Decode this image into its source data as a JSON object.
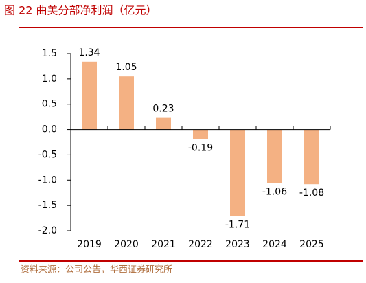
{
  "chart_data": {
    "type": "bar",
    "title": "图 22   曲美分部净利润（亿元）",
    "source": "资料来源：公司公告，华西证券研究所",
    "categories": [
      "2019",
      "2020",
      "2021",
      "2022",
      "2023",
      "2024",
      "2025"
    ],
    "values": [
      1.34,
      1.05,
      0.23,
      -0.19,
      -1.71,
      -1.06,
      -1.08
    ],
    "color": "#f4b183",
    "ylim": [
      -2,
      1.5
    ],
    "yticks": [
      1.5,
      {
        "value": 1,
        "label": "1.0"
      },
      0.5,
      {
        "value": 0,
        "label": "0.0"
      },
      -0.5,
      {
        "value": -1,
        "label": "-1.0"
      },
      -1.5,
      {
        "value": -2,
        "label": "-2.0"
      }
    ],
    "grid": false
  }
}
